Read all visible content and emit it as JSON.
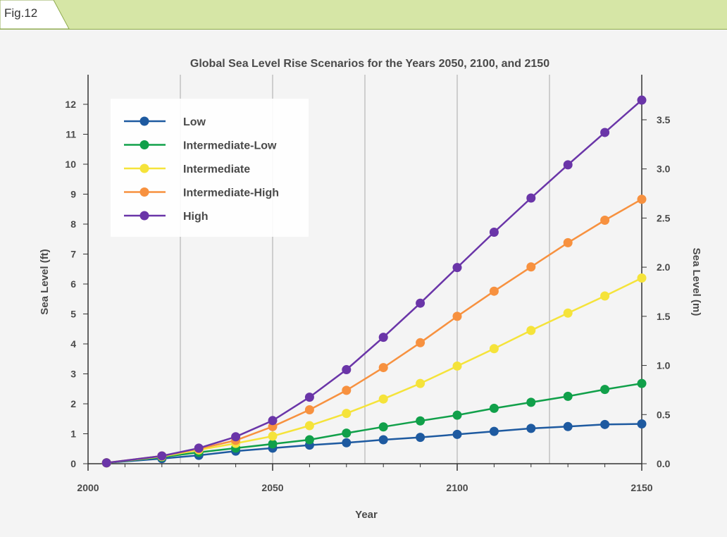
{
  "figure": {
    "label": "Fig.12",
    "header_color": "#d6e6a6"
  },
  "chart_data": {
    "type": "line",
    "title": "Global Sea Level Rise Scenarios for the Years 2050, 2100, and 2150",
    "xlabel": "Year",
    "ylabel_left": "Sea Level (ft)",
    "ylabel_right": "Sea Level (m)",
    "xlim": [
      2000,
      2150
    ],
    "ylim_ft": [
      0,
      12.5
    ],
    "x_ticks": [
      2000,
      2050,
      2100,
      2150
    ],
    "y_ticks_left": [
      "0",
      "1",
      "2",
      "3",
      "4",
      "5",
      "6",
      "7",
      "8",
      "9",
      "10",
      "11",
      "12"
    ],
    "y_ticks_right": [
      "0.0",
      "0.5",
      "1.0",
      "1.5",
      "2.0",
      "2.5",
      "3.0",
      "3.5"
    ],
    "grid": "vertical",
    "legend_position": "top-left",
    "x": [
      2005,
      2020,
      2030,
      2040,
      2050,
      2060,
      2070,
      2080,
      2090,
      2100,
      2110,
      2120,
      2130,
      2140,
      2150
    ],
    "series": [
      {
        "name": "Low",
        "color": "#1e5aa0",
        "values": [
          0.03,
          0.17,
          0.28,
          0.42,
          0.52,
          0.62,
          0.7,
          0.8,
          0.88,
          0.98,
          1.08,
          1.18,
          1.24,
          1.31,
          1.33
        ]
      },
      {
        "name": "Intermediate-Low",
        "color": "#11a04a",
        "values": [
          0.03,
          0.22,
          0.38,
          0.52,
          0.66,
          0.8,
          1.02,
          1.23,
          1.43,
          1.62,
          1.85,
          2.05,
          2.25,
          2.48,
          2.68
        ]
      },
      {
        "name": "Intermediate",
        "color": "#f5e33a",
        "values": [
          0.03,
          0.24,
          0.46,
          0.68,
          0.92,
          1.27,
          1.68,
          2.16,
          2.68,
          3.26,
          3.84,
          4.45,
          5.03,
          5.6,
          6.2
        ]
      },
      {
        "name": "Intermediate-High",
        "color": "#f7913f",
        "values": [
          0.03,
          0.26,
          0.5,
          0.78,
          1.24,
          1.8,
          2.45,
          3.21,
          4.04,
          4.92,
          5.76,
          6.57,
          7.38,
          8.13,
          8.83
        ]
      },
      {
        "name": "High",
        "color": "#6a35a8",
        "values": [
          0.03,
          0.26,
          0.52,
          0.9,
          1.44,
          2.22,
          3.14,
          4.22,
          5.36,
          6.55,
          7.73,
          8.87,
          9.98,
          11.06,
          12.14
        ]
      }
    ]
  }
}
